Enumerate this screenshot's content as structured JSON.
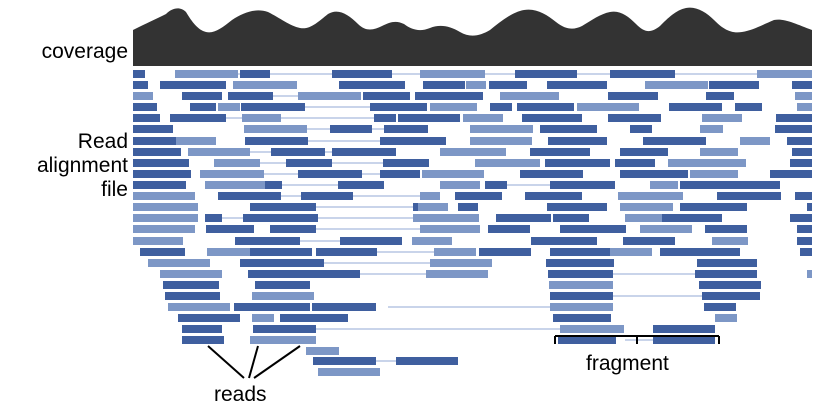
{
  "labels": {
    "coverage": "coverage",
    "read_line1": "Read",
    "read_line2": "alignment",
    "read_line3": "file",
    "reads": "reads",
    "fragment": "fragment"
  },
  "colors": {
    "coverage_fill": "#333333",
    "read_dark": "#3f5f9f",
    "read_light": "#7d97c6",
    "connector": "#a9bbdd",
    "annotation": "#000000"
  }
}
